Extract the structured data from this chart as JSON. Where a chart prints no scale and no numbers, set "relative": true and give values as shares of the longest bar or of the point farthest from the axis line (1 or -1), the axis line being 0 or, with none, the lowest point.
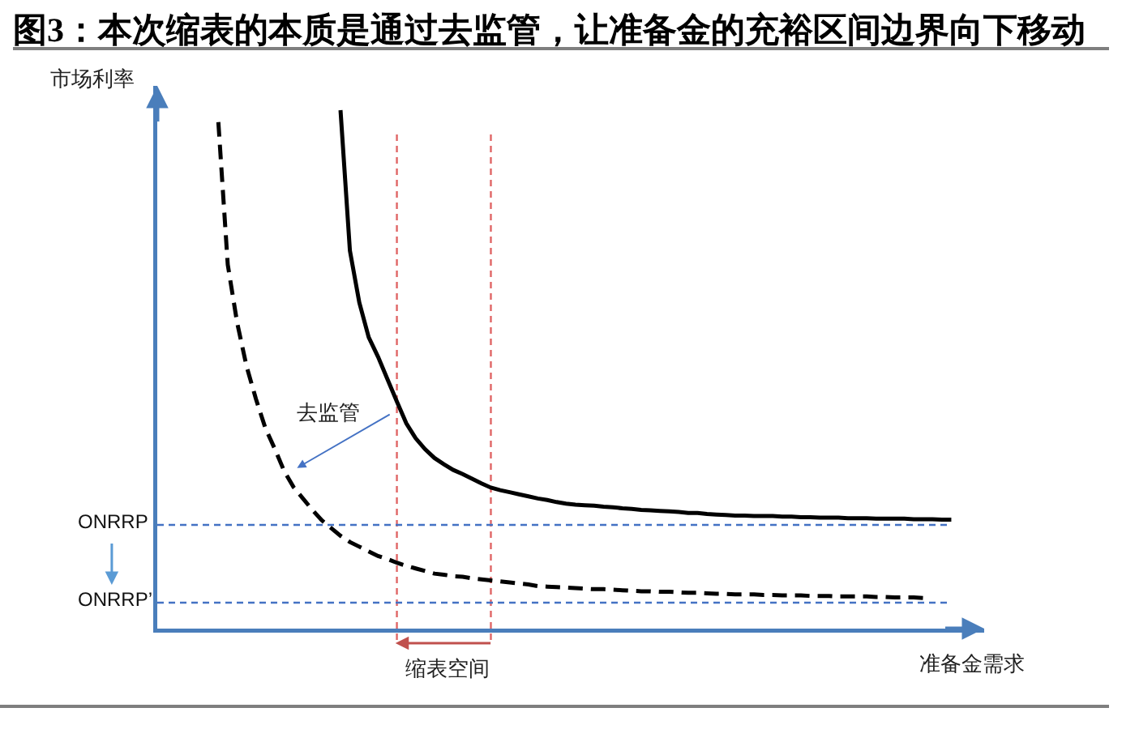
{
  "chart_data": {
    "type": "line",
    "title": "图3：本次缩表的本质是通过去监管，让准备金的充裕区间边界向下移动",
    "xlabel": "准备金需求",
    "ylabel": "市场利率",
    "relative": true,
    "categories": [
      null,
      null,
      null,
      null,
      null,
      null,
      null,
      null,
      null,
      null,
      null,
      null,
      null,
      null,
      null,
      null,
      null,
      null,
      null,
      null,
      null,
      null,
      null,
      null,
      null,
      null,
      null,
      null,
      null,
      null,
      null,
      null,
      null,
      null,
      null,
      null,
      null,
      null,
      null,
      null,
      null,
      null,
      null,
      null,
      null,
      null,
      null,
      null,
      null,
      null,
      null,
      null,
      null,
      null,
      null,
      null,
      null,
      null,
      null,
      null,
      null,
      null,
      null,
      null,
      null,
      null,
      null,
      null,
      null,
      null,
      null,
      null,
      null,
      null,
      null,
      null,
      null,
      null,
      null,
      null,
      null,
      null,
      null,
      null,
      null,
      null,
      null,
      null
    ],
    "series": [
      {
        "color": "#000000",
        "line_style": "solid",
        "values": [
          null,
          null,
          null,
          null,
          null,
          null,
          null,
          null,
          null,
          null,
          null,
          null,
          null,
          null,
          null,
          null,
          null,
          null,
          null,
          1,
          0.729,
          0.629,
          0.562,
          0.524,
          0.481,
          0.438,
          0.396,
          0.367,
          0.346,
          0.329,
          0.317,
          0.306,
          0.298,
          0.289,
          0.28,
          0.272,
          0.267,
          0.263,
          0.259,
          0.255,
          0.251,
          0.248,
          0.244,
          0.241,
          0.239,
          0.238,
          0.237,
          0.235,
          0.234,
          0.232,
          0.231,
          0.229,
          0.228,
          0.227,
          0.226,
          0.225,
          0.223,
          0.223,
          0.221,
          0.22,
          0.219,
          0.218,
          0.218,
          0.217,
          0.217,
          0.217,
          0.216,
          0.216,
          0.215,
          0.215,
          0.214,
          0.214,
          0.214,
          0.213,
          0.213,
          0.213,
          0.212,
          0.212,
          0.212,
          0.212,
          0.211,
          0.211,
          0.211,
          0.21,
          0.21,
          null,
          null,
          null
        ]
      },
      {
        "color": "#000000",
        "line_style": "dashed",
        "values": [
          null,
          null,
          null,
          null,
          null,
          null,
          0.977,
          0.702,
          0.59,
          0.506,
          0.443,
          0.387,
          0.347,
          0.304,
          0.273,
          0.251,
          0.229,
          0.209,
          0.194,
          0.179,
          0.167,
          0.158,
          0.149,
          0.14,
          0.134,
          0.127,
          0.121,
          0.116,
          0.111,
          0.106,
          0.104,
          0.101,
          0.1,
          0.097,
          0.095,
          0.093,
          0.091,
          0.089,
          0.087,
          0.085,
          0.082,
          0.081,
          0.08,
          0.079,
          0.078,
          0.077,
          0.076,
          0.076,
          0.075,
          0.074,
          0.073,
          0.072,
          0.072,
          0.071,
          0.071,
          0.07,
          0.069,
          0.069,
          0.068,
          0.067,
          0.067,
          0.066,
          0.066,
          0.066,
          0.065,
          0.065,
          0.064,
          0.064,
          0.064,
          0.063,
          0.063,
          0.063,
          0.062,
          0.062,
          0.062,
          0.062,
          0.061,
          0.061,
          0.06,
          0.06,
          0.06,
          0.059,
          null,
          null,
          null,
          null,
          null,
          null
        ]
      }
    ],
    "ref_lines": [
      {
        "axis": "y",
        "value": 0.2,
        "label": "ONRRP",
        "color": "#4472c4",
        "line_style": "dashed"
      },
      {
        "axis": "y",
        "value": 0.05,
        "label": "ONRRP’",
        "color": "#4472c4",
        "line_style": "dashed"
      }
    ],
    "annotations": [
      "去监管",
      "缩表空间"
    ]
  }
}
